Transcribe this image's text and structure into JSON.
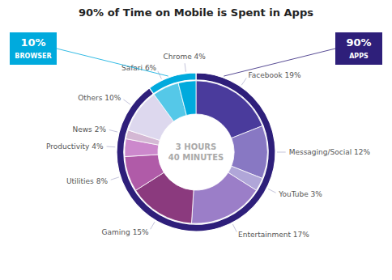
{
  "chart_data": {
    "type": "pie",
    "title": "90% of Time on Mobile is Spent in Apps",
    "annotations": [
      "3 HOURS",
      "40 MINUTES"
    ],
    "series": [
      {
        "categories": [
          "APPS",
          "BROWSER"
        ],
        "values": [
          90,
          10
        ],
        "value_labels": [
          "90%",
          "10%"
        ],
        "colors": [
          "#2e1f7a",
          "#00aadd"
        ]
      },
      {
        "categories": [
          "Facebook 19%",
          "Messaging/Social 12%",
          "YouTube 3%",
          "Entertainment 17%",
          "Gaming 15%",
          "Utilities 8%",
          "Productivity 4%",
          "News 2%",
          "Others 10%",
          "Safari 6%",
          "Chrome 4%"
        ],
        "values": [
          19,
          12,
          3,
          17,
          15,
          8,
          4,
          2,
          10,
          6,
          4
        ],
        "colors": [
          "#4a3b9c",
          "#8878c3",
          "#b0a6d8",
          "#9b7ec8",
          "#8b3a7e",
          "#b05ba8",
          "#cc88cc",
          "#d4b8d4",
          "#ddd8ee",
          "#55c8e8",
          "#00aadd"
        ]
      }
    ]
  }
}
